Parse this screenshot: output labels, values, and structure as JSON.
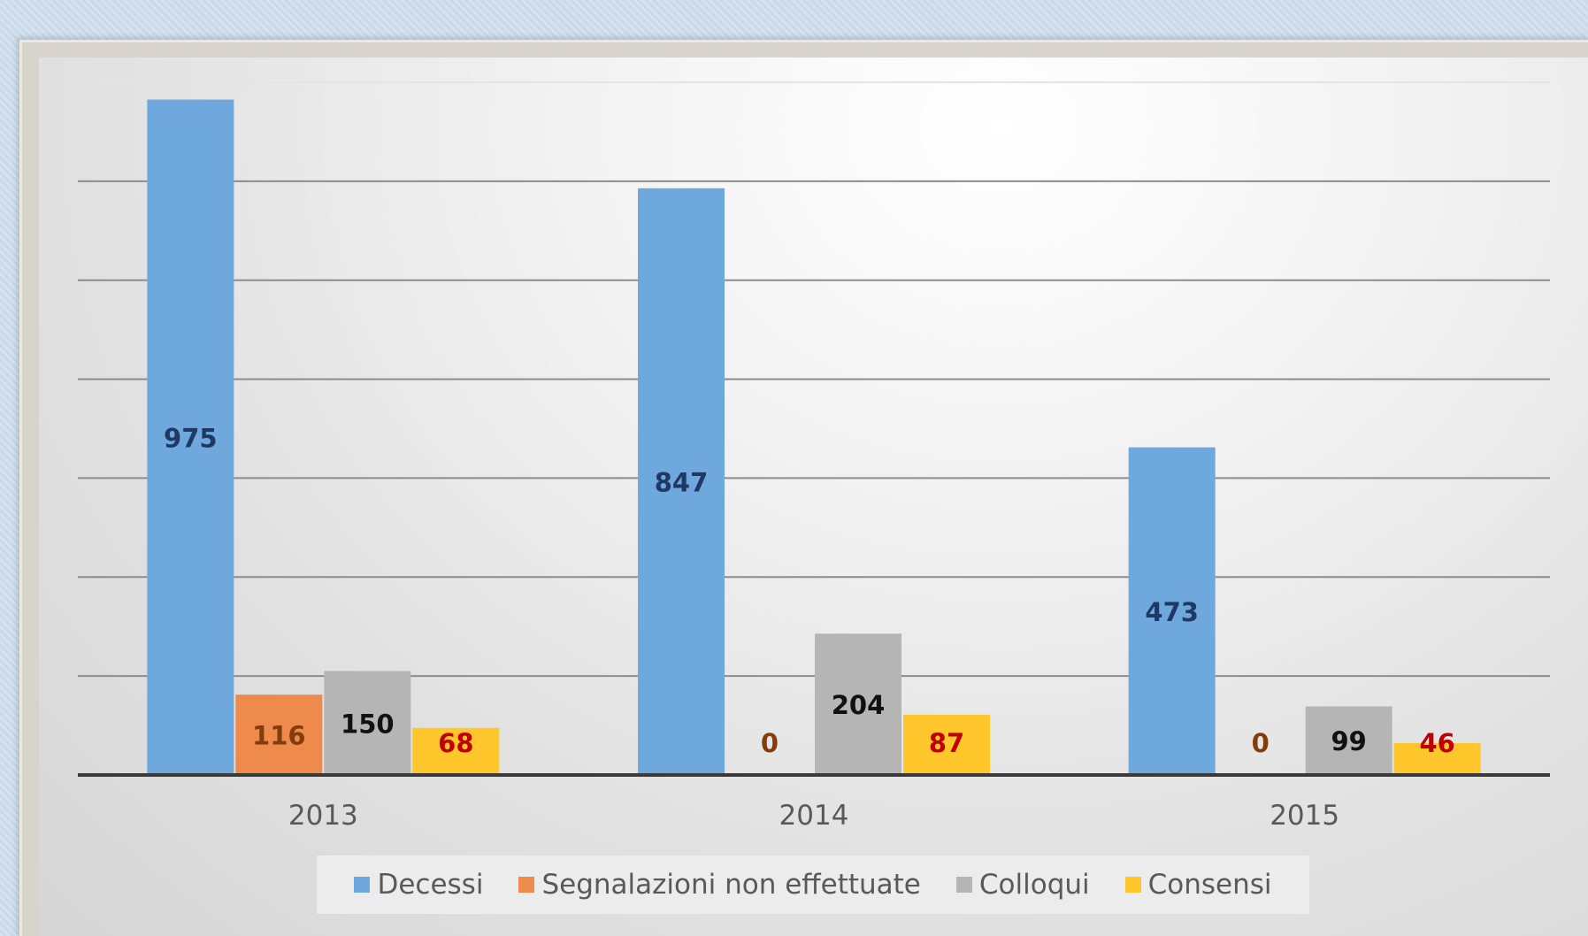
{
  "chart_data": {
    "type": "bar",
    "categories": [
      "2013",
      "2014",
      "2015"
    ],
    "series": [
      {
        "name": "Decessi",
        "color": "#6fa8dc",
        "label_color": "#1f3864",
        "values": [
          975,
          847,
          473
        ]
      },
      {
        "name": "Segnalazioni non effettuate",
        "color": "#ed8a4c",
        "label_color": "#833c0b",
        "values": [
          116,
          0,
          0
        ]
      },
      {
        "name": "Colloqui",
        "color": "#b5b5b5",
        "label_color": "#111111",
        "values": [
          150,
          204,
          99
        ]
      },
      {
        "name": "Consensi",
        "color": "#ffc72c",
        "label_color": "#c00000",
        "values": [
          68,
          87,
          46
        ]
      }
    ],
    "ylim": [
      0,
      1000
    ],
    "grid": true,
    "legend_position": "bottom",
    "xlabel": "",
    "ylabel": ""
  }
}
